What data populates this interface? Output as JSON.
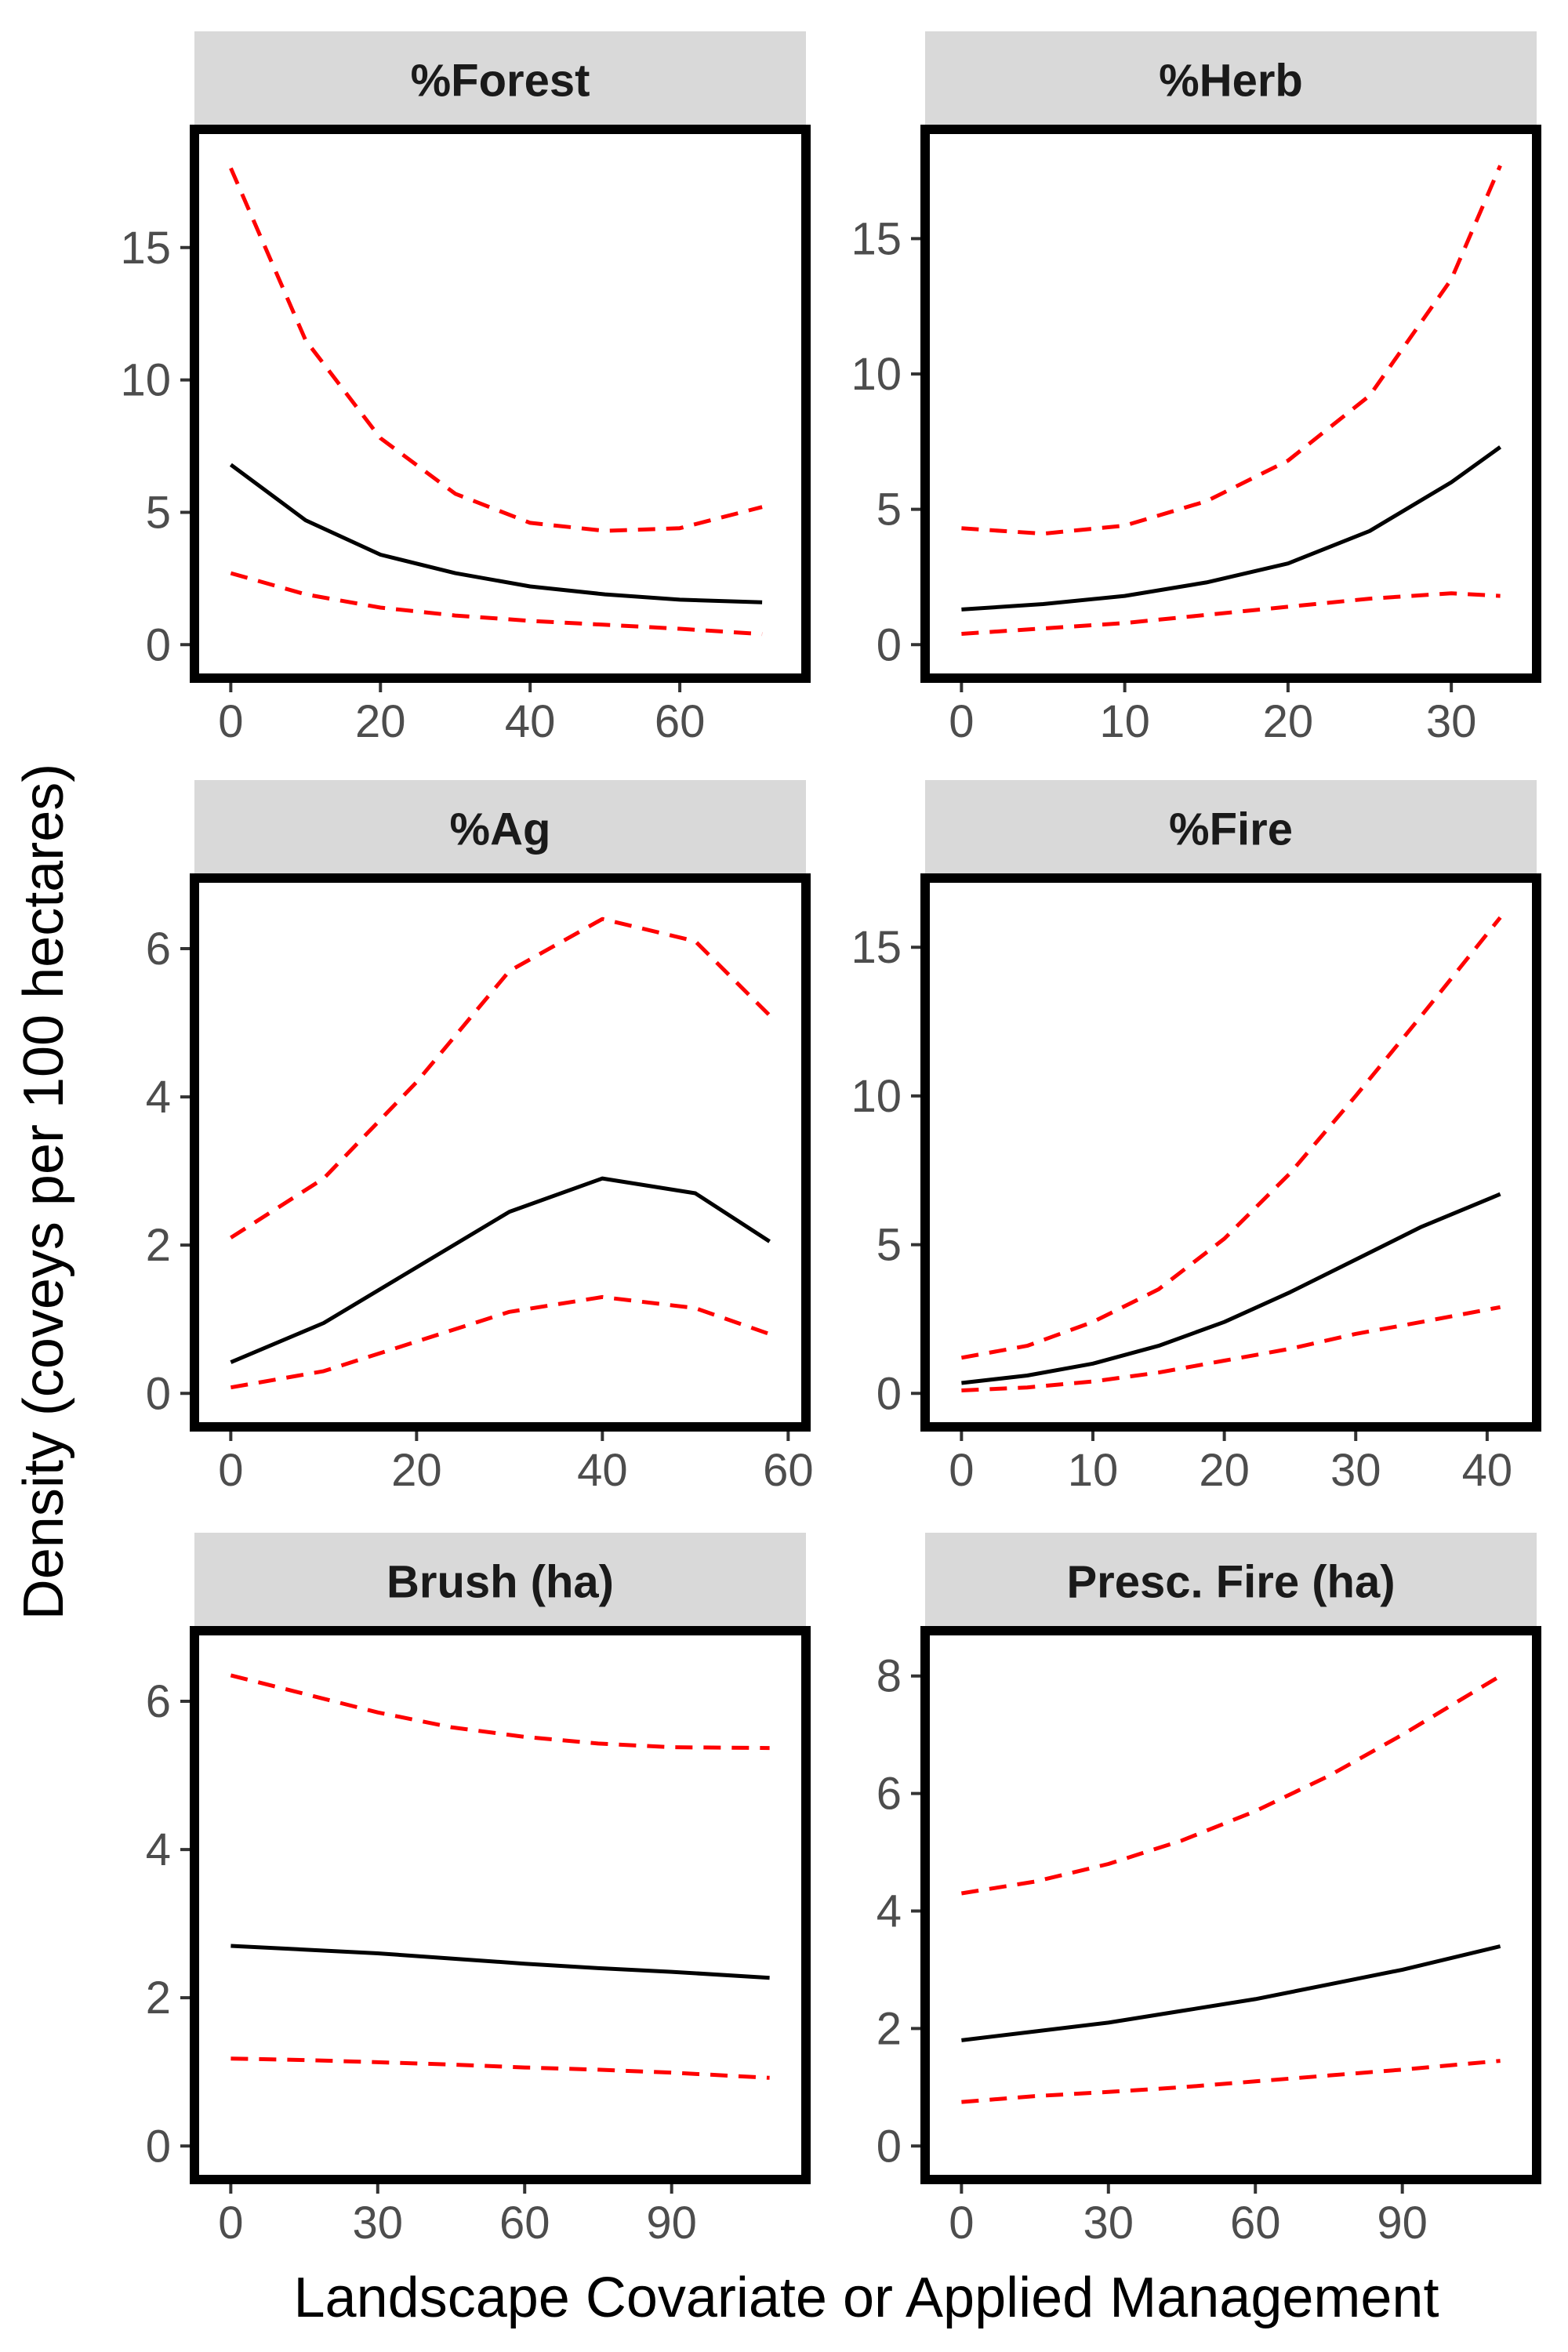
{
  "colors": {
    "fit": "#000000",
    "ci": "#ff0000",
    "strip": "#d9d9d9",
    "tick_text": "#4d4d4d"
  },
  "axes": {
    "xlabel": "Landscape Covariate or Applied Management",
    "ylabel": "Density (coveys per 100 hectares)"
  },
  "chart_data": [
    {
      "type": "line",
      "title": "%Forest",
      "xlim": [
        0,
        72
      ],
      "ylim": [
        0,
        18.2
      ],
      "xticks": [
        0,
        20,
        40,
        60
      ],
      "yticks": [
        0,
        5,
        10,
        15
      ],
      "x": [
        0,
        10,
        20,
        30,
        40,
        50,
        60,
        71
      ],
      "series": [
        {
          "role": "fit",
          "values": [
            6.8,
            4.7,
            3.4,
            2.7,
            2.2,
            1.9,
            1.7,
            1.6
          ]
        },
        {
          "role": "upper",
          "values": [
            18.0,
            11.5,
            7.8,
            5.7,
            4.6,
            4.3,
            4.4,
            5.2
          ]
        },
        {
          "role": "lower",
          "values": [
            2.7,
            1.9,
            1.4,
            1.1,
            0.9,
            0.75,
            0.6,
            0.4
          ]
        }
      ]
    },
    {
      "type": "line",
      "title": "%Herb",
      "xlim": [
        0,
        33
      ],
      "ylim": [
        0,
        17.8
      ],
      "xticks": [
        0,
        10,
        20,
        30
      ],
      "yticks": [
        0,
        5,
        10,
        15
      ],
      "x": [
        0,
        5,
        10,
        15,
        20,
        25,
        30,
        33
      ],
      "series": [
        {
          "role": "fit",
          "values": [
            1.3,
            1.5,
            1.8,
            2.3,
            3.0,
            4.2,
            6.0,
            7.3
          ]
        },
        {
          "role": "upper",
          "values": [
            4.3,
            4.1,
            4.4,
            5.3,
            6.8,
            9.2,
            13.5,
            17.7
          ]
        },
        {
          "role": "lower",
          "values": [
            0.4,
            0.6,
            0.8,
            1.1,
            1.4,
            1.7,
            1.9,
            1.8
          ]
        }
      ]
    },
    {
      "type": "line",
      "title": "%Ag",
      "xlim": [
        0,
        58
      ],
      "ylim": [
        0,
        6.5
      ],
      "xticks": [
        0,
        20,
        40,
        60
      ],
      "yticks": [
        0,
        2,
        4,
        6
      ],
      "x": [
        0,
        10,
        20,
        30,
        40,
        50,
        58
      ],
      "series": [
        {
          "role": "fit",
          "values": [
            0.42,
            0.95,
            1.7,
            2.45,
            2.9,
            2.7,
            2.05
          ]
        },
        {
          "role": "upper",
          "values": [
            2.1,
            2.9,
            4.2,
            5.7,
            6.4,
            6.1,
            5.1
          ]
        },
        {
          "role": "lower",
          "values": [
            0.08,
            0.3,
            0.7,
            1.1,
            1.3,
            1.15,
            0.8
          ]
        }
      ]
    },
    {
      "type": "line",
      "title": "%Fire",
      "xlim": [
        0,
        41
      ],
      "ylim": [
        0,
        16.2
      ],
      "xticks": [
        0,
        10,
        20,
        30,
        40
      ],
      "yticks": [
        0,
        5,
        10,
        15
      ],
      "x": [
        0,
        5,
        10,
        15,
        20,
        25,
        30,
        35,
        41
      ],
      "series": [
        {
          "role": "fit",
          "values": [
            0.35,
            0.6,
            1.0,
            1.6,
            2.4,
            3.4,
            4.5,
            5.6,
            6.7
          ]
        },
        {
          "role": "upper",
          "values": [
            1.2,
            1.6,
            2.4,
            3.5,
            5.2,
            7.4,
            10.0,
            12.7,
            16.0
          ]
        },
        {
          "role": "lower",
          "values": [
            0.1,
            0.2,
            0.4,
            0.7,
            1.1,
            1.5,
            2.0,
            2.4,
            2.9
          ]
        }
      ]
    },
    {
      "type": "line",
      "title": "Brush (ha)",
      "xlim": [
        0,
        110
      ],
      "ylim": [
        0,
        6.5
      ],
      "xticks": [
        0,
        30,
        60,
        90
      ],
      "yticks": [
        0,
        2,
        4,
        6
      ],
      "x": [
        0,
        15,
        30,
        45,
        60,
        75,
        90,
        110
      ],
      "series": [
        {
          "role": "fit",
          "values": [
            2.7,
            2.65,
            2.6,
            2.53,
            2.46,
            2.4,
            2.35,
            2.27
          ]
        },
        {
          "role": "upper",
          "values": [
            6.35,
            6.1,
            5.85,
            5.65,
            5.52,
            5.43,
            5.38,
            5.37
          ]
        },
        {
          "role": "lower",
          "values": [
            1.18,
            1.16,
            1.13,
            1.1,
            1.06,
            1.03,
            0.99,
            0.92
          ]
        }
      ]
    },
    {
      "type": "line",
      "title": "Presc. Fire (ha)",
      "xlim": [
        0,
        110
      ],
      "ylim": [
        0,
        8.2
      ],
      "xticks": [
        0,
        30,
        60,
        90
      ],
      "yticks": [
        0,
        2,
        4,
        6,
        8
      ],
      "x": [
        0,
        15,
        30,
        45,
        60,
        75,
        90,
        110
      ],
      "series": [
        {
          "role": "fit",
          "values": [
            1.8,
            1.95,
            2.1,
            2.3,
            2.5,
            2.75,
            3.0,
            3.4
          ]
        },
        {
          "role": "upper",
          "values": [
            4.3,
            4.5,
            4.8,
            5.2,
            5.7,
            6.3,
            7.0,
            8.0
          ]
        },
        {
          "role": "lower",
          "values": [
            0.75,
            0.85,
            0.92,
            1.0,
            1.1,
            1.2,
            1.3,
            1.45
          ]
        }
      ]
    }
  ]
}
